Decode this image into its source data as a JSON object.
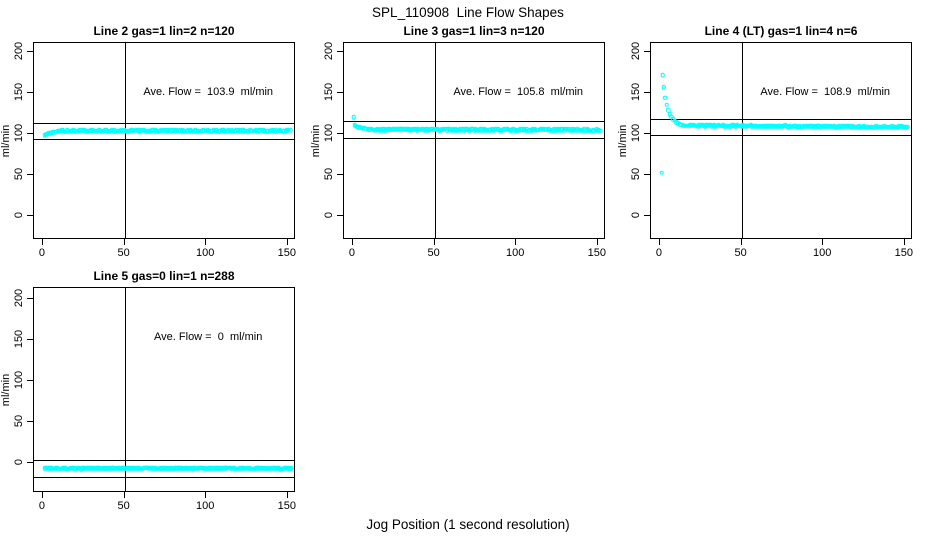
{
  "page": {
    "title": "SPL_110908  Line Flow Shapes",
    "xlabel": "Jog Position (1 second resolution)",
    "background_color": "#ffffff",
    "point_color": "#00ffff",
    "line_color": "#000000"
  },
  "chart_data": [
    {
      "type": "scatter",
      "title": "Line 2 gas=1 lin=2 n=120",
      "annotation": "Ave. Flow =  103.9  ml/min",
      "ave_flow_ml_min": 103.9,
      "ylabel": "ml/min",
      "xticks": [
        0,
        50,
        100,
        150
      ],
      "yticks": [
        0,
        50,
        100,
        150,
        200
      ],
      "xlim": [
        -5.5,
        155
      ],
      "ylim": [
        -29,
        211
      ],
      "vline_x": 50,
      "hlines": [
        113.9,
        93.9
      ],
      "lead_points": [
        [
          1,
          98.6
        ],
        [
          1.6,
          99.4
        ],
        [
          2.2,
          99.9
        ],
        [
          2.8,
          100.3
        ],
        [
          3.5,
          100.8
        ],
        [
          4.2,
          101.2
        ],
        [
          5,
          101.6
        ],
        [
          6,
          102.0
        ],
        [
          7,
          102.4
        ],
        [
          8,
          102.8
        ],
        [
          9,
          103.2
        ],
        [
          10,
          103.5
        ]
      ],
      "band": {
        "x_start": 10,
        "x_end": 152,
        "x_step": 0.7,
        "y_start": 103.9,
        "y_end": 104.1,
        "jitter": 1.1
      }
    },
    {
      "type": "scatter",
      "title": "Line 3 gas=1 lin=3 n=120",
      "annotation": "Ave. Flow =  105.8  ml/min",
      "ave_flow_ml_min": 105.8,
      "ylabel": "ml/min",
      "xticks": [
        0,
        50,
        100,
        150
      ],
      "yticks": [
        0,
        50,
        100,
        150,
        200
      ],
      "xlim": [
        -5.5,
        155
      ],
      "ylim": [
        -29,
        211
      ],
      "vline_x": 50,
      "hlines": [
        115.8,
        95.8
      ],
      "lead_points": [
        [
          0.5,
          120.3
        ],
        [
          1.2,
          111.0
        ],
        [
          1.8,
          110.0
        ],
        [
          2.5,
          109.2
        ],
        [
          3.2,
          108.6
        ],
        [
          4,
          108.1
        ],
        [
          5,
          107.6
        ],
        [
          6,
          107.2
        ],
        [
          7,
          106.9
        ],
        [
          8,
          106.6
        ],
        [
          9,
          106.3
        ],
        [
          10,
          106.1
        ]
      ],
      "band": {
        "x_start": 10,
        "x_end": 152,
        "x_step": 0.7,
        "y_start": 105.9,
        "y_end": 105.0,
        "jitter": 1.2
      }
    },
    {
      "type": "scatter",
      "title": "Line 4 (LT) gas=1 lin=4 n=6",
      "annotation": "Ave. Flow =  108.9  ml/min",
      "ave_flow_ml_min": 108.9,
      "ylabel": "ml/min",
      "xticks": [
        0,
        50,
        100,
        150
      ],
      "yticks": [
        0,
        50,
        100,
        150,
        200
      ],
      "xlim": [
        -5.5,
        155
      ],
      "ylim": [
        -29,
        211
      ],
      "vline_x": 50,
      "hlines": [
        118.9,
        98.9
      ],
      "lead_points": [
        [
          1,
          53
        ],
        [
          1.6,
          172
        ],
        [
          2.4,
          157
        ],
        [
          3.2,
          144.5
        ],
        [
          4,
          135.5
        ],
        [
          5,
          129
        ],
        [
          6,
          124.5
        ],
        [
          7,
          121
        ],
        [
          8,
          118.3
        ],
        [
          9,
          116.2
        ],
        [
          10,
          114.6
        ],
        [
          11,
          113.3
        ],
        [
          12,
          112.3
        ],
        [
          13,
          111.6
        ],
        [
          14,
          111.0
        ]
      ],
      "band": {
        "x_start": 15,
        "x_end": 152,
        "x_step": 0.7,
        "y_start": 110.6,
        "y_end": 108.4,
        "jitter": 1.0
      }
    },
    {
      "type": "scatter",
      "title": "Line 5 gas=0 lin=1 n=288",
      "annotation": "Ave. Flow =  0  ml/min",
      "ave_flow_ml_min": 0,
      "ylabel": "ml/min",
      "xticks": [
        0,
        50,
        100,
        150
      ],
      "yticks": [
        0,
        50,
        100,
        150,
        200
      ],
      "xlim": [
        -5.5,
        155
      ],
      "ylim": [
        -36.6,
        213.4
      ],
      "vline_x": 50,
      "hlines": [
        3.5,
        -16.5
      ],
      "lead_points": [],
      "band": {
        "x_start": 1,
        "x_end": 152.5,
        "x_step": 0.7,
        "y_start": -6.5,
        "y_end": -6.5,
        "jitter": 0.85
      }
    }
  ]
}
